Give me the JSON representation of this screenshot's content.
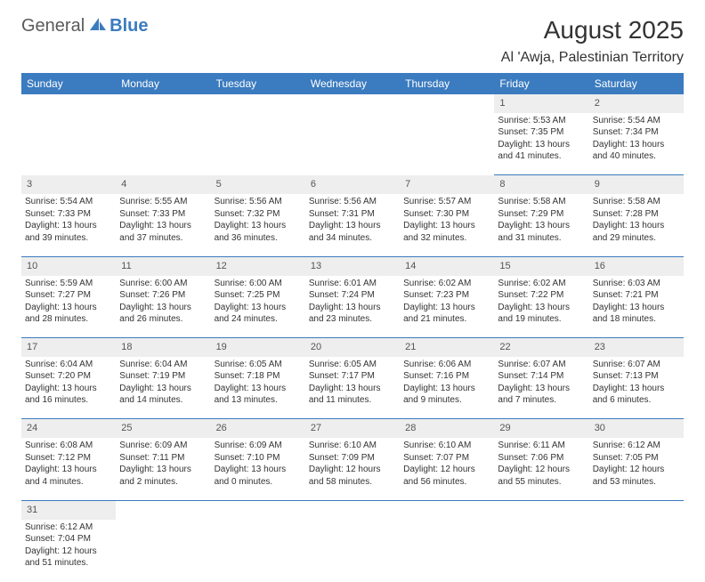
{
  "logo": {
    "part1": "General",
    "part2": "Blue",
    "icon_color": "#3b7bbf"
  },
  "header": {
    "title": "August 2025",
    "location": "Al 'Awja, Palestinian Territory"
  },
  "colors": {
    "header_bg": "#3b7bbf",
    "header_text": "#ffffff",
    "daynum_bg": "#eeeeee",
    "border": "#3b7bbf"
  },
  "dayHeaders": [
    "Sunday",
    "Monday",
    "Tuesday",
    "Wednesday",
    "Thursday",
    "Friday",
    "Saturday"
  ],
  "weeks": [
    {
      "nums": [
        "",
        "",
        "",
        "",
        "",
        "1",
        "2"
      ],
      "cells": [
        null,
        null,
        null,
        null,
        null,
        {
          "sr": "Sunrise: 5:53 AM",
          "ss": "Sunset: 7:35 PM",
          "d1": "Daylight: 13 hours",
          "d2": "and 41 minutes."
        },
        {
          "sr": "Sunrise: 5:54 AM",
          "ss": "Sunset: 7:34 PM",
          "d1": "Daylight: 13 hours",
          "d2": "and 40 minutes."
        }
      ]
    },
    {
      "nums": [
        "3",
        "4",
        "5",
        "6",
        "7",
        "8",
        "9"
      ],
      "cells": [
        {
          "sr": "Sunrise: 5:54 AM",
          "ss": "Sunset: 7:33 PM",
          "d1": "Daylight: 13 hours",
          "d2": "and 39 minutes."
        },
        {
          "sr": "Sunrise: 5:55 AM",
          "ss": "Sunset: 7:33 PM",
          "d1": "Daylight: 13 hours",
          "d2": "and 37 minutes."
        },
        {
          "sr": "Sunrise: 5:56 AM",
          "ss": "Sunset: 7:32 PM",
          "d1": "Daylight: 13 hours",
          "d2": "and 36 minutes."
        },
        {
          "sr": "Sunrise: 5:56 AM",
          "ss": "Sunset: 7:31 PM",
          "d1": "Daylight: 13 hours",
          "d2": "and 34 minutes."
        },
        {
          "sr": "Sunrise: 5:57 AM",
          "ss": "Sunset: 7:30 PM",
          "d1": "Daylight: 13 hours",
          "d2": "and 32 minutes."
        },
        {
          "sr": "Sunrise: 5:58 AM",
          "ss": "Sunset: 7:29 PM",
          "d1": "Daylight: 13 hours",
          "d2": "and 31 minutes."
        },
        {
          "sr": "Sunrise: 5:58 AM",
          "ss": "Sunset: 7:28 PM",
          "d1": "Daylight: 13 hours",
          "d2": "and 29 minutes."
        }
      ]
    },
    {
      "nums": [
        "10",
        "11",
        "12",
        "13",
        "14",
        "15",
        "16"
      ],
      "cells": [
        {
          "sr": "Sunrise: 5:59 AM",
          "ss": "Sunset: 7:27 PM",
          "d1": "Daylight: 13 hours",
          "d2": "and 28 minutes."
        },
        {
          "sr": "Sunrise: 6:00 AM",
          "ss": "Sunset: 7:26 PM",
          "d1": "Daylight: 13 hours",
          "d2": "and 26 minutes."
        },
        {
          "sr": "Sunrise: 6:00 AM",
          "ss": "Sunset: 7:25 PM",
          "d1": "Daylight: 13 hours",
          "d2": "and 24 minutes."
        },
        {
          "sr": "Sunrise: 6:01 AM",
          "ss": "Sunset: 7:24 PM",
          "d1": "Daylight: 13 hours",
          "d2": "and 23 minutes."
        },
        {
          "sr": "Sunrise: 6:02 AM",
          "ss": "Sunset: 7:23 PM",
          "d1": "Daylight: 13 hours",
          "d2": "and 21 minutes."
        },
        {
          "sr": "Sunrise: 6:02 AM",
          "ss": "Sunset: 7:22 PM",
          "d1": "Daylight: 13 hours",
          "d2": "and 19 minutes."
        },
        {
          "sr": "Sunrise: 6:03 AM",
          "ss": "Sunset: 7:21 PM",
          "d1": "Daylight: 13 hours",
          "d2": "and 18 minutes."
        }
      ]
    },
    {
      "nums": [
        "17",
        "18",
        "19",
        "20",
        "21",
        "22",
        "23"
      ],
      "cells": [
        {
          "sr": "Sunrise: 6:04 AM",
          "ss": "Sunset: 7:20 PM",
          "d1": "Daylight: 13 hours",
          "d2": "and 16 minutes."
        },
        {
          "sr": "Sunrise: 6:04 AM",
          "ss": "Sunset: 7:19 PM",
          "d1": "Daylight: 13 hours",
          "d2": "and 14 minutes."
        },
        {
          "sr": "Sunrise: 6:05 AM",
          "ss": "Sunset: 7:18 PM",
          "d1": "Daylight: 13 hours",
          "d2": "and 13 minutes."
        },
        {
          "sr": "Sunrise: 6:05 AM",
          "ss": "Sunset: 7:17 PM",
          "d1": "Daylight: 13 hours",
          "d2": "and 11 minutes."
        },
        {
          "sr": "Sunrise: 6:06 AM",
          "ss": "Sunset: 7:16 PM",
          "d1": "Daylight: 13 hours",
          "d2": "and 9 minutes."
        },
        {
          "sr": "Sunrise: 6:07 AM",
          "ss": "Sunset: 7:14 PM",
          "d1": "Daylight: 13 hours",
          "d2": "and 7 minutes."
        },
        {
          "sr": "Sunrise: 6:07 AM",
          "ss": "Sunset: 7:13 PM",
          "d1": "Daylight: 13 hours",
          "d2": "and 6 minutes."
        }
      ]
    },
    {
      "nums": [
        "24",
        "25",
        "26",
        "27",
        "28",
        "29",
        "30"
      ],
      "cells": [
        {
          "sr": "Sunrise: 6:08 AM",
          "ss": "Sunset: 7:12 PM",
          "d1": "Daylight: 13 hours",
          "d2": "and 4 minutes."
        },
        {
          "sr": "Sunrise: 6:09 AM",
          "ss": "Sunset: 7:11 PM",
          "d1": "Daylight: 13 hours",
          "d2": "and 2 minutes."
        },
        {
          "sr": "Sunrise: 6:09 AM",
          "ss": "Sunset: 7:10 PM",
          "d1": "Daylight: 13 hours",
          "d2": "and 0 minutes."
        },
        {
          "sr": "Sunrise: 6:10 AM",
          "ss": "Sunset: 7:09 PM",
          "d1": "Daylight: 12 hours",
          "d2": "and 58 minutes."
        },
        {
          "sr": "Sunrise: 6:10 AM",
          "ss": "Sunset: 7:07 PM",
          "d1": "Daylight: 12 hours",
          "d2": "and 56 minutes."
        },
        {
          "sr": "Sunrise: 6:11 AM",
          "ss": "Sunset: 7:06 PM",
          "d1": "Daylight: 12 hours",
          "d2": "and 55 minutes."
        },
        {
          "sr": "Sunrise: 6:12 AM",
          "ss": "Sunset: 7:05 PM",
          "d1": "Daylight: 12 hours",
          "d2": "and 53 minutes."
        }
      ]
    },
    {
      "nums": [
        "31",
        "",
        "",
        "",
        "",
        "",
        ""
      ],
      "cells": [
        {
          "sr": "Sunrise: 6:12 AM",
          "ss": "Sunset: 7:04 PM",
          "d1": "Daylight: 12 hours",
          "d2": "and 51 minutes."
        },
        null,
        null,
        null,
        null,
        null,
        null
      ]
    }
  ]
}
